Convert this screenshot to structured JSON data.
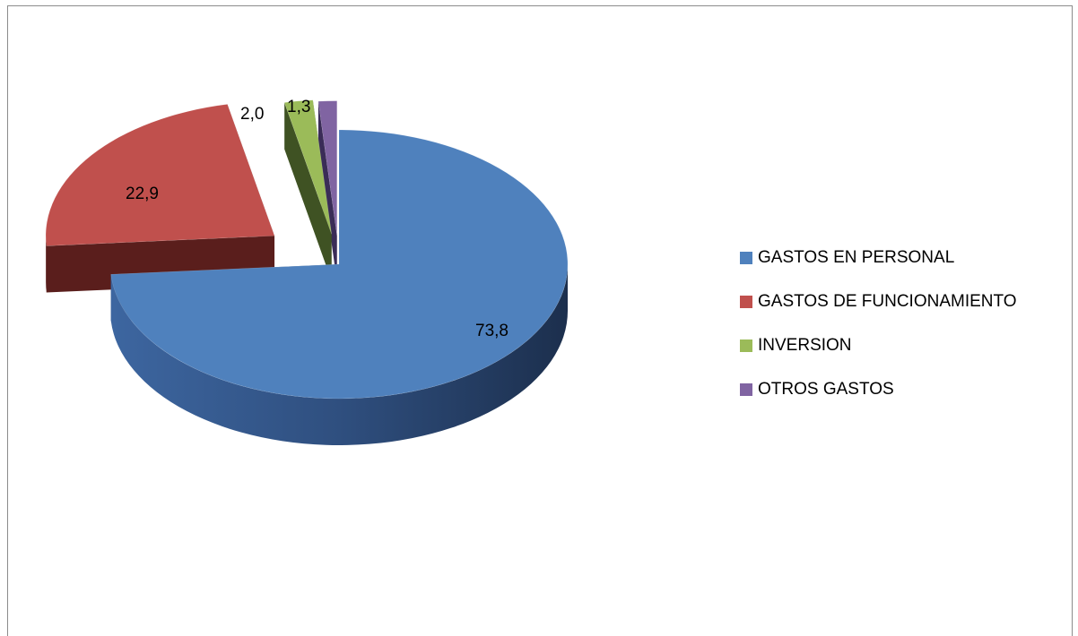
{
  "chart_data": {
    "type": "pie",
    "style": "3d-exploded",
    "categories": [
      "GASTOS EN PERSONAL",
      "GASTOS DE FUNCIONAMIENTO",
      "INVERSION",
      "OTROS GASTOS"
    ],
    "values": [
      73.8,
      22.9,
      2.0,
      1.3
    ],
    "data_labels": [
      "73,8",
      "22,9",
      "2,0",
      "1,3"
    ],
    "colors": [
      "#4f81bd",
      "#c0504d",
      "#9bbb59",
      "#8064a2"
    ],
    "legend_position": "right",
    "title": ""
  }
}
